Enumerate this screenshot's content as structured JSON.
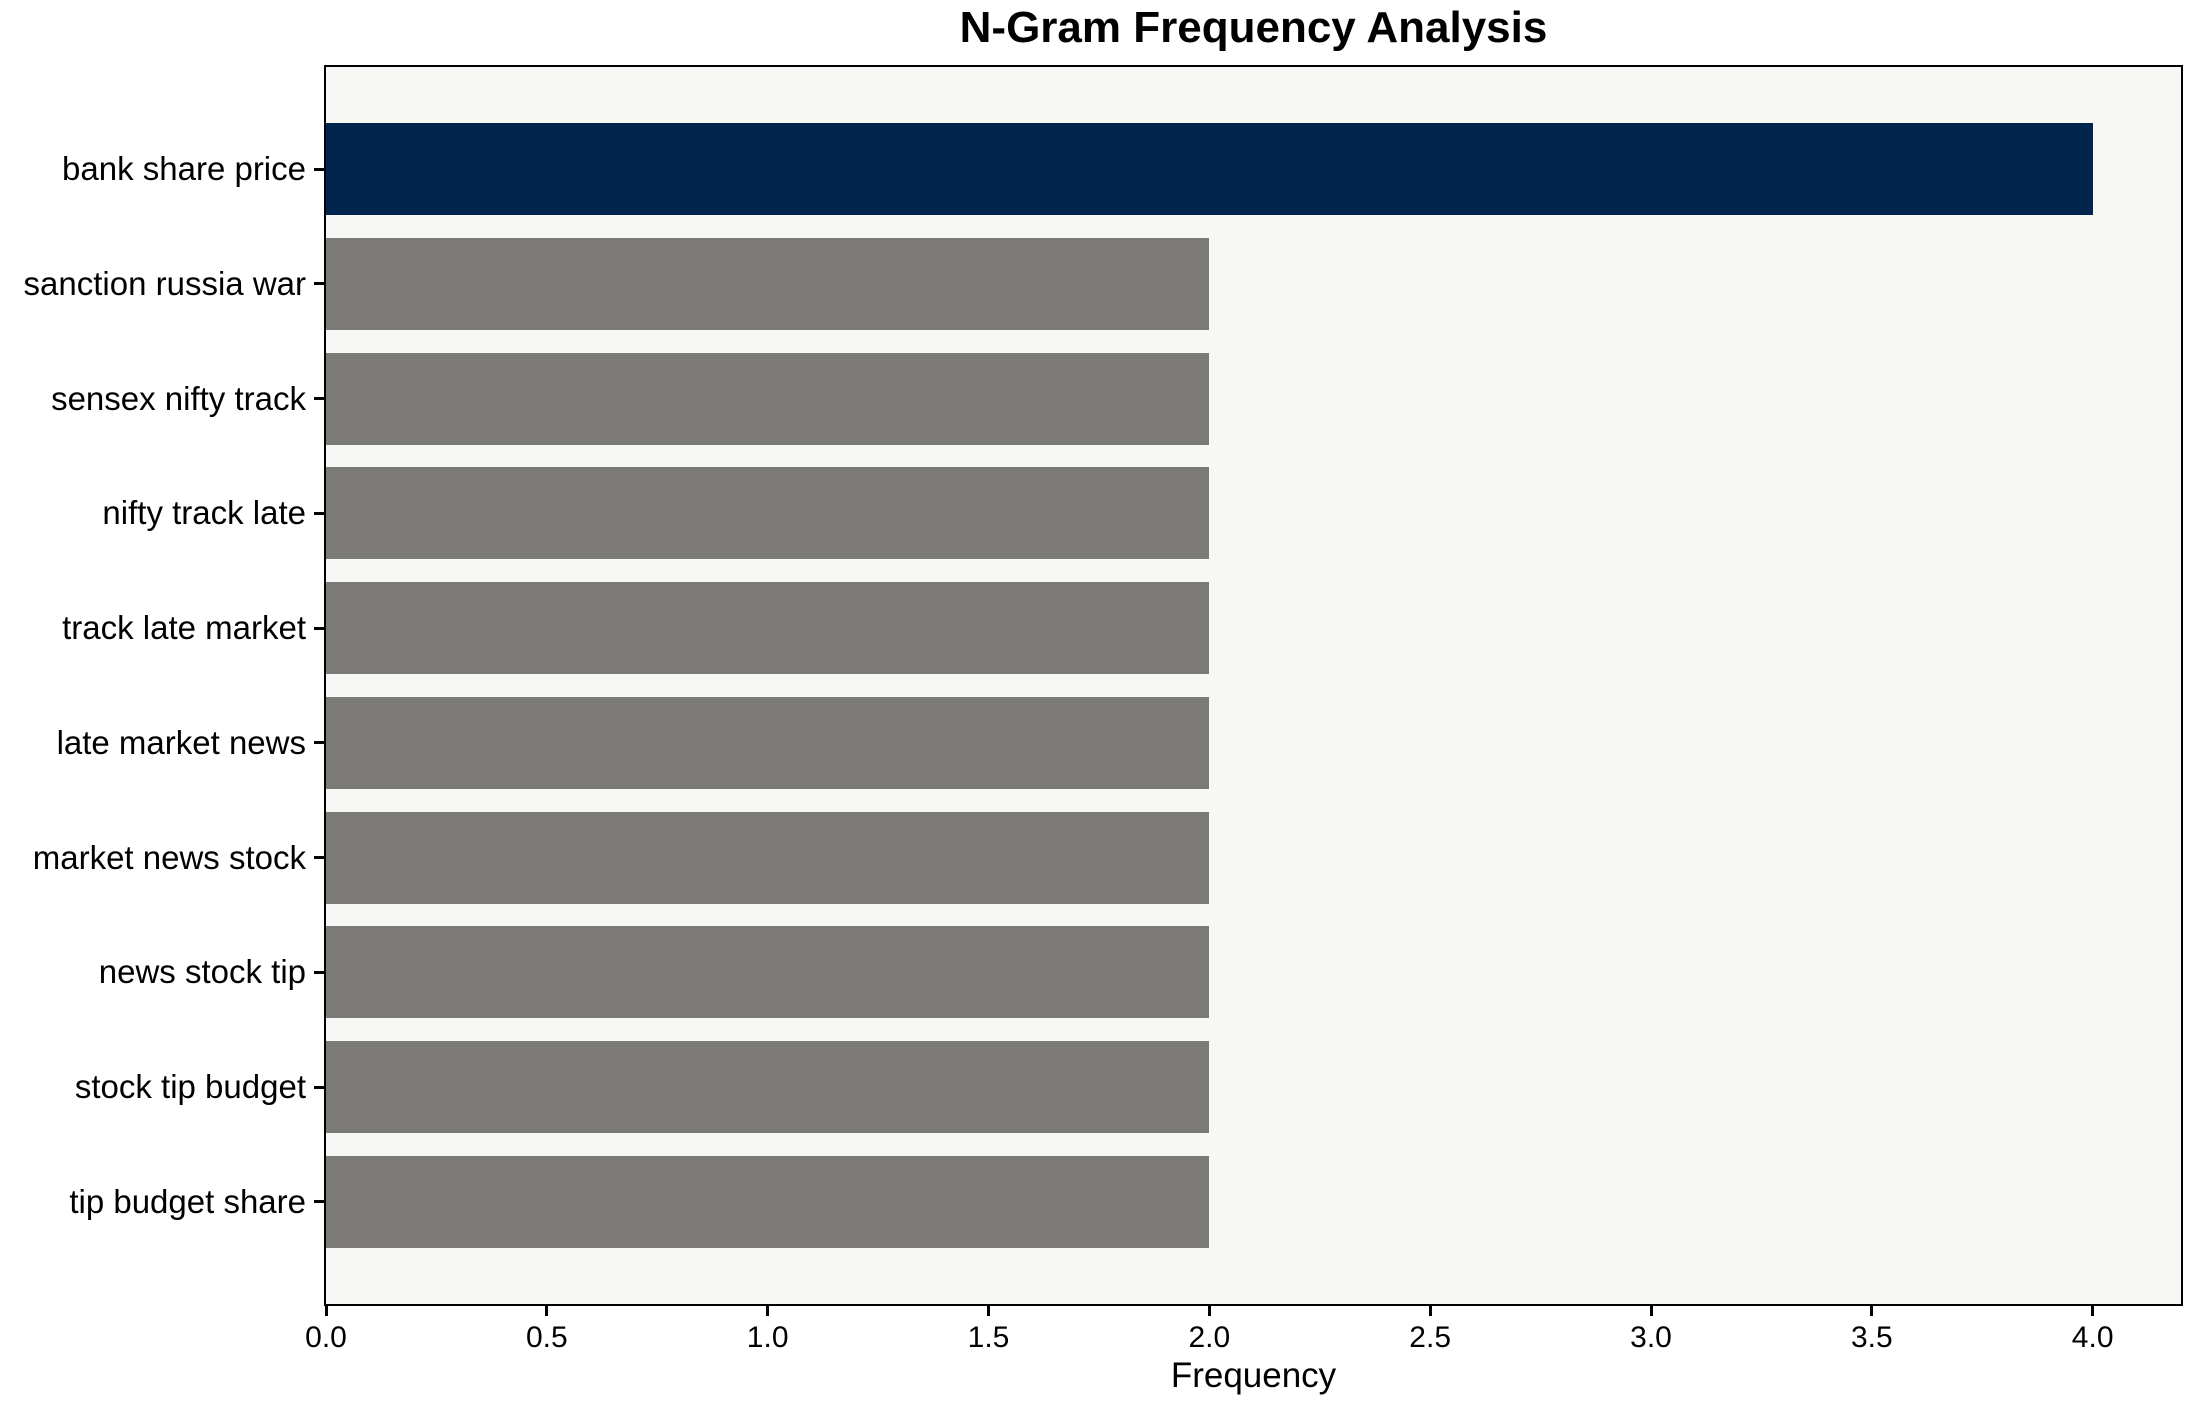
{
  "figure": {
    "background": "#ffffff",
    "plot_background": "#f7f7f6",
    "spine_color": "#000000"
  },
  "chart_data": {
    "type": "bar",
    "orientation": "horizontal",
    "title": "N-Gram Frequency Analysis",
    "xlabel": "Frequency",
    "categories": [
      "bank share price",
      "sanction russia war",
      "sensex nifty track",
      "nifty track late",
      "track late market",
      "late market news",
      "market news stock",
      "news stock tip",
      "stock tip budget",
      "tip budget share"
    ],
    "values": [
      4,
      2,
      2,
      2,
      2,
      2,
      2,
      2,
      2,
      2
    ],
    "colors": [
      "#02254e",
      "#7b7a77",
      "#7b7a77",
      "#7b7a77",
      "#7b7a77",
      "#7b7a77",
      "#7b7a77",
      "#7b7a77",
      "#7b7a77",
      "#7b7a77"
    ],
    "highlight_color": "#02254e",
    "default_color": "#7b7a77",
    "xlim": [
      0,
      4.2
    ],
    "xticks": [
      0.0,
      0.5,
      1.0,
      1.5,
      2.0,
      2.5,
      3.0,
      3.5,
      4.0
    ],
    "xtick_labels": [
      "0.0",
      "0.5",
      "1.0",
      "1.5",
      "2.0",
      "2.5",
      "3.0",
      "3.5",
      "4.0"
    ],
    "grid": false,
    "legend": "none"
  }
}
